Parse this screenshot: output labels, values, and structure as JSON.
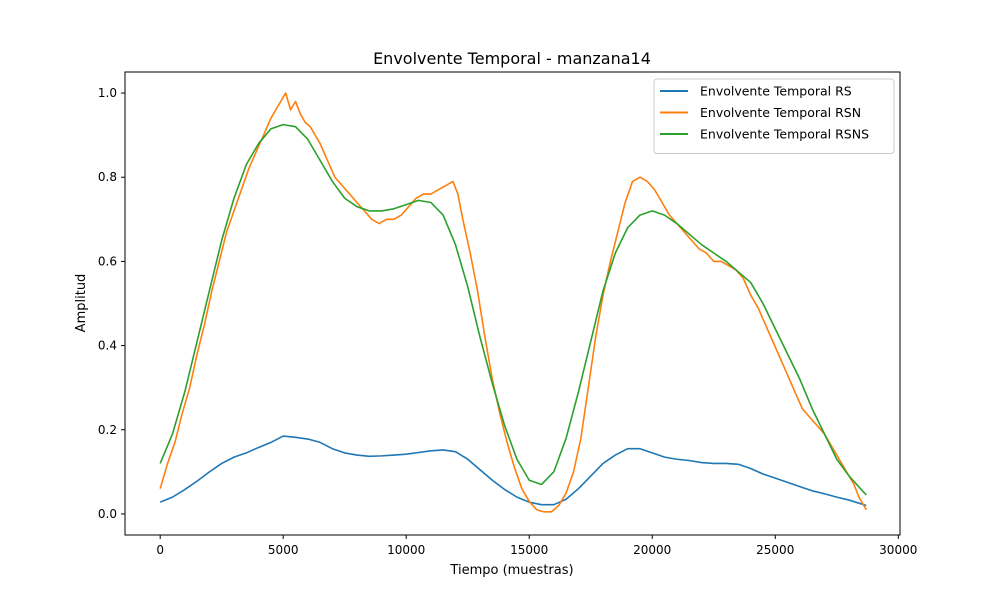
{
  "chart_data": {
    "type": "line",
    "title": "Envolvente Temporal - manzana14",
    "xlabel": "Tiempo (muestras)",
    "ylabel": "Amplitud",
    "xlim": [
      -1430,
      30070
    ],
    "ylim": [
      -0.05,
      1.05
    ],
    "xticks": [
      0,
      5000,
      10000,
      15000,
      20000,
      25000,
      30000
    ],
    "xtick_labels": [
      "0",
      "5000",
      "10000",
      "15000",
      "20000",
      "25000",
      "30000"
    ],
    "yticks": [
      0.0,
      0.2,
      0.4,
      0.6,
      0.8,
      1.0
    ],
    "ytick_labels": [
      "0.0",
      "0.2",
      "0.4",
      "0.6",
      "0.8",
      "1.0"
    ],
    "grid": false,
    "legend_position": "top-right",
    "series": [
      {
        "name": "Envolvente Temporal RS",
        "color": "#1f77b4",
        "x": [
          0,
          500,
          1000,
          1500,
          2000,
          2500,
          3000,
          3500,
          4000,
          4500,
          5000,
          5500,
          6000,
          6500,
          7000,
          7500,
          8000,
          8500,
          9000,
          9500,
          10000,
          10500,
          11000,
          11500,
          12000,
          12500,
          13000,
          13500,
          14000,
          14500,
          15000,
          15500,
          16000,
          16500,
          17000,
          17500,
          18000,
          18500,
          19000,
          19500,
          20000,
          20500,
          21000,
          21500,
          22000,
          22500,
          23000,
          23500,
          24000,
          24500,
          25000,
          25500,
          26000,
          26500,
          27000,
          27500,
          28000,
          28700
        ],
        "y": [
          0.028,
          0.04,
          0.058,
          0.078,
          0.1,
          0.12,
          0.135,
          0.145,
          0.158,
          0.17,
          0.185,
          0.182,
          0.178,
          0.17,
          0.155,
          0.145,
          0.14,
          0.137,
          0.138,
          0.14,
          0.142,
          0.146,
          0.15,
          0.152,
          0.148,
          0.13,
          0.105,
          0.08,
          0.058,
          0.04,
          0.028,
          0.022,
          0.022,
          0.035,
          0.06,
          0.09,
          0.12,
          0.14,
          0.155,
          0.155,
          0.145,
          0.135,
          0.13,
          0.127,
          0.122,
          0.12,
          0.12,
          0.118,
          0.108,
          0.095,
          0.085,
          0.075,
          0.065,
          0.055,
          0.048,
          0.04,
          0.033,
          0.02
        ]
      },
      {
        "name": "Envolvente Temporal RSN",
        "color": "#ff7f0e",
        "x": [
          0,
          300,
          600,
          900,
          1200,
          1500,
          1800,
          2100,
          2400,
          2700,
          3000,
          3300,
          3600,
          3900,
          4200,
          4500,
          4700,
          4900,
          5100,
          5300,
          5500,
          5700,
          5900,
          6100,
          6300,
          6500,
          6800,
          7100,
          7400,
          7700,
          8000,
          8300,
          8600,
          8900,
          9200,
          9500,
          9800,
          10100,
          10400,
          10700,
          11000,
          11300,
          11600,
          11900,
          12100,
          12300,
          12600,
          12900,
          13200,
          13500,
          13800,
          14100,
          14400,
          14700,
          15000,
          15300,
          15600,
          15900,
          16200,
          16500,
          16800,
          17100,
          17400,
          17700,
          18000,
          18300,
          18600,
          18900,
          19200,
          19500,
          19800,
          20100,
          20400,
          20700,
          21000,
          21300,
          21600,
          21900,
          22200,
          22500,
          22800,
          23100,
          23400,
          23700,
          24000,
          24300,
          24600,
          24900,
          25200,
          25500,
          25800,
          26100,
          26400,
          26700,
          27000,
          27300,
          27600,
          27900,
          28200,
          28400,
          28700
        ],
        "y": [
          0.06,
          0.12,
          0.17,
          0.24,
          0.3,
          0.38,
          0.45,
          0.53,
          0.6,
          0.67,
          0.72,
          0.77,
          0.82,
          0.86,
          0.9,
          0.94,
          0.96,
          0.98,
          1.0,
          0.96,
          0.98,
          0.95,
          0.93,
          0.92,
          0.9,
          0.88,
          0.84,
          0.8,
          0.78,
          0.76,
          0.74,
          0.72,
          0.7,
          0.69,
          0.7,
          0.7,
          0.71,
          0.73,
          0.75,
          0.76,
          0.76,
          0.77,
          0.78,
          0.79,
          0.76,
          0.7,
          0.62,
          0.53,
          0.42,
          0.32,
          0.24,
          0.17,
          0.11,
          0.06,
          0.03,
          0.01,
          0.005,
          0.005,
          0.02,
          0.05,
          0.1,
          0.18,
          0.3,
          0.42,
          0.52,
          0.6,
          0.67,
          0.74,
          0.79,
          0.8,
          0.79,
          0.77,
          0.74,
          0.71,
          0.69,
          0.67,
          0.65,
          0.63,
          0.62,
          0.6,
          0.6,
          0.59,
          0.58,
          0.56,
          0.52,
          0.49,
          0.45,
          0.41,
          0.37,
          0.33,
          0.29,
          0.25,
          0.23,
          0.21,
          0.19,
          0.16,
          0.13,
          0.1,
          0.07,
          0.04,
          0.01
        ]
      },
      {
        "name": "Envolvente Temporal RSNS",
        "color": "#2ca02c",
        "x": [
          0,
          500,
          1000,
          1500,
          2000,
          2500,
          3000,
          3500,
          4000,
          4500,
          5000,
          5500,
          6000,
          6500,
          7000,
          7500,
          8000,
          8500,
          9000,
          9500,
          10000,
          10500,
          11000,
          11500,
          12000,
          12500,
          13000,
          13500,
          14000,
          14500,
          15000,
          15500,
          16000,
          16500,
          17000,
          17500,
          18000,
          18500,
          19000,
          19500,
          20000,
          20500,
          21000,
          21500,
          22000,
          22500,
          23000,
          23500,
          24000,
          24500,
          25000,
          25500,
          26000,
          26500,
          27000,
          27500,
          28000,
          28700
        ],
        "y": [
          0.12,
          0.19,
          0.29,
          0.41,
          0.53,
          0.65,
          0.75,
          0.83,
          0.88,
          0.915,
          0.925,
          0.92,
          0.89,
          0.84,
          0.79,
          0.75,
          0.73,
          0.72,
          0.72,
          0.725,
          0.735,
          0.745,
          0.74,
          0.71,
          0.64,
          0.54,
          0.42,
          0.31,
          0.21,
          0.13,
          0.08,
          0.07,
          0.1,
          0.18,
          0.29,
          0.41,
          0.53,
          0.62,
          0.68,
          0.71,
          0.72,
          0.71,
          0.69,
          0.665,
          0.64,
          0.62,
          0.6,
          0.575,
          0.55,
          0.5,
          0.44,
          0.38,
          0.32,
          0.25,
          0.19,
          0.13,
          0.09,
          0.045
        ]
      }
    ]
  }
}
